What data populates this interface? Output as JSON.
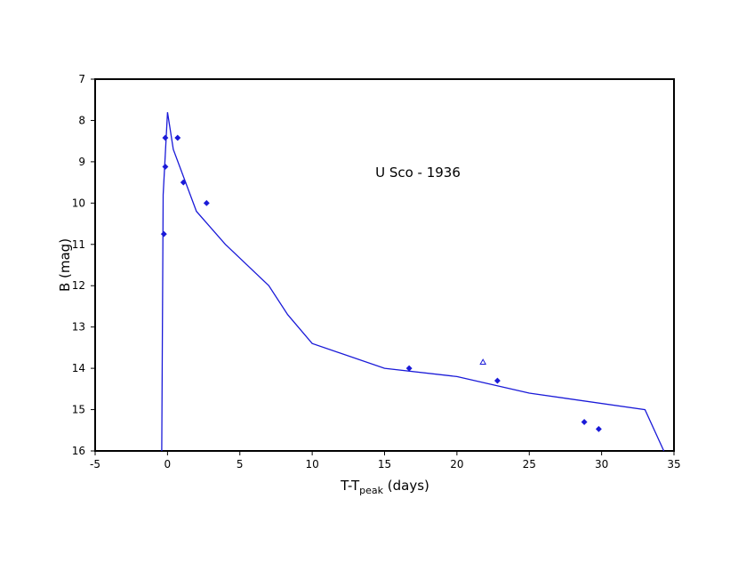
{
  "chart_data": {
    "type": "scatter",
    "annotation": "U Sco - 1936",
    "xlabel": {
      "main": "T-T",
      "sub": "peak",
      "suffix": " (days)"
    },
    "ylabel": "B (mag)",
    "xlim": [
      -5,
      35
    ],
    "ylim": [
      7,
      16
    ],
    "y_inverted": true,
    "x_ticks": [
      -5,
      0,
      5,
      10,
      15,
      20,
      25,
      30,
      35
    ],
    "y_ticks": [
      7,
      8,
      9,
      10,
      11,
      12,
      13,
      14,
      15,
      16
    ],
    "grid": false,
    "colors": {
      "series": "#1a1ad8",
      "frame": "#000000"
    },
    "series": [
      {
        "kind": "diamond",
        "points": [
          {
            "x": -0.15,
            "y": 8.42
          },
          {
            "x": -0.15,
            "y": 9.12
          },
          {
            "x": -0.25,
            "y": 10.75
          },
          {
            "x": 0.7,
            "y": 8.42
          },
          {
            "x": 1.1,
            "y": 9.5
          },
          {
            "x": 2.7,
            "y": 10.0
          },
          {
            "x": 16.7,
            "y": 14.0
          },
          {
            "x": 22.8,
            "y": 14.3
          },
          {
            "x": 28.8,
            "y": 15.3
          },
          {
            "x": 29.8,
            "y": 15.47
          }
        ]
      },
      {
        "kind": "triangle",
        "points": [
          {
            "x": 21.8,
            "y": 13.85
          }
        ]
      },
      {
        "kind": "line",
        "points": [
          {
            "x": -0.4,
            "y": 16.0
          },
          {
            "x": -0.3,
            "y": 9.8
          },
          {
            "x": 0.0,
            "y": 7.8
          },
          {
            "x": 0.4,
            "y": 8.7
          },
          {
            "x": 2.0,
            "y": 10.2
          },
          {
            "x": 4.0,
            "y": 11.0
          },
          {
            "x": 7.0,
            "y": 12.0
          },
          {
            "x": 8.3,
            "y": 12.7
          },
          {
            "x": 10.0,
            "y": 13.4
          },
          {
            "x": 15.0,
            "y": 14.0
          },
          {
            "x": 20.0,
            "y": 14.2
          },
          {
            "x": 25.0,
            "y": 14.6
          },
          {
            "x": 33.0,
            "y": 15.0
          },
          {
            "x": 34.3,
            "y": 16.0
          }
        ]
      }
    ]
  }
}
